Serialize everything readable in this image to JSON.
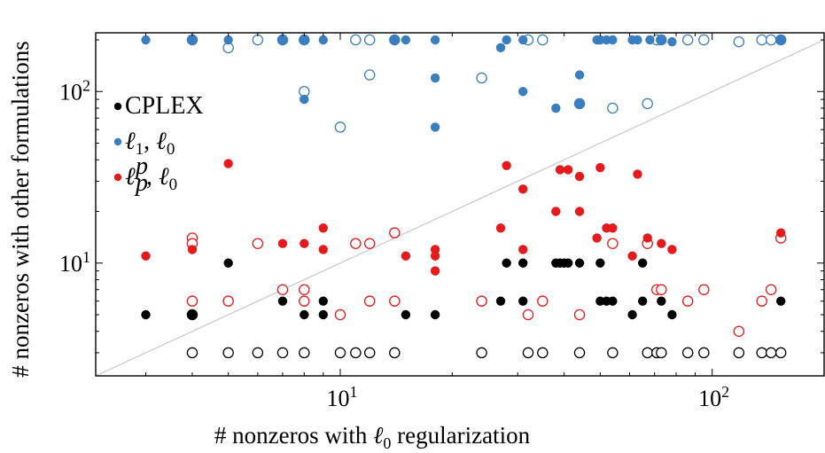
{
  "chart_data": {
    "type": "scatter",
    "title": "",
    "xlabel": "# nonzeros with ℓ0 regularization",
    "ylabel": "# nonzeros with other formulations",
    "xscale": "log",
    "yscale": "log",
    "xlim": [
      2.2,
      200
    ],
    "ylim": [
      2.2,
      220
    ],
    "x_ticks": [
      {
        "value": 10,
        "base": "10",
        "exp": "1"
      },
      {
        "value": 100,
        "base": "10",
        "exp": "2"
      }
    ],
    "y_ticks": [
      {
        "value": 10,
        "base": "10",
        "exp": "1"
      },
      {
        "value": 100,
        "base": "10",
        "exp": "2"
      }
    ],
    "diagonal": true,
    "legend_position": "left",
    "legend": [
      {
        "label": "CPLEX",
        "series": "cplex",
        "color": "#000000"
      },
      {
        "label": "ℓ1, ℓ0",
        "series": "l1",
        "color": "#3a7ebf"
      },
      {
        "label": "ℓpp, ℓ0",
        "series": "lp",
        "color": "#e41a1c"
      }
    ],
    "series": [
      {
        "key": "cplex",
        "color": "#000000",
        "filled": [
          [
            3,
            5
          ],
          [
            4,
            5
          ],
          [
            5,
            10
          ],
          [
            7,
            6
          ],
          [
            8,
            5
          ],
          [
            9,
            5
          ],
          [
            9,
            6
          ],
          [
            15,
            5
          ],
          [
            18,
            5
          ],
          [
            27,
            6
          ],
          [
            28,
            10
          ],
          [
            31,
            6
          ],
          [
            31,
            10
          ],
          [
            38,
            10
          ],
          [
            39,
            10
          ],
          [
            40,
            10
          ],
          [
            41,
            10
          ],
          [
            44,
            10
          ],
          [
            50,
            6
          ],
          [
            50,
            10
          ],
          [
            52,
            6
          ],
          [
            54,
            6
          ],
          [
            61,
            5
          ],
          [
            65,
            6
          ],
          [
            65,
            10
          ],
          [
            73,
            6
          ],
          [
            78,
            5
          ],
          [
            153,
            6
          ]
        ],
        "open": [
          [
            4,
            5
          ],
          [
            4,
            3
          ],
          [
            5,
            3
          ],
          [
            6,
            3
          ],
          [
            7,
            3
          ],
          [
            8,
            3
          ],
          [
            10,
            3
          ],
          [
            11,
            3
          ],
          [
            12,
            3
          ],
          [
            14,
            3
          ],
          [
            24,
            3
          ],
          [
            32,
            3
          ],
          [
            35,
            3
          ],
          [
            44,
            3
          ],
          [
            54,
            3
          ],
          [
            67,
            3
          ],
          [
            71,
            3
          ],
          [
            73,
            3
          ],
          [
            86,
            3
          ],
          [
            95,
            3
          ],
          [
            118,
            3
          ],
          [
            136,
            3
          ],
          [
            144,
            3
          ],
          [
            153,
            3
          ]
        ]
      },
      {
        "key": "l1",
        "color": "#3a7ebf",
        "filled": [
          [
            3,
            200
          ],
          [
            4,
            200
          ],
          [
            5,
            200
          ],
          [
            7,
            200
          ],
          [
            8,
            200
          ],
          [
            8,
            90
          ],
          [
            9,
            200
          ],
          [
            14,
            200
          ],
          [
            15,
            200
          ],
          [
            18,
            200
          ],
          [
            18,
            120
          ],
          [
            18,
            62
          ],
          [
            27,
            180
          ],
          [
            28,
            200
          ],
          [
            31,
            200
          ],
          [
            31,
            100
          ],
          [
            38,
            80
          ],
          [
            44,
            125
          ],
          [
            44,
            85
          ],
          [
            49,
            200
          ],
          [
            50,
            200
          ],
          [
            52,
            200
          ],
          [
            54,
            200
          ],
          [
            61,
            200
          ],
          [
            63,
            200
          ],
          [
            68,
            200
          ],
          [
            73,
            200
          ],
          [
            78,
            195
          ],
          [
            153,
            200
          ]
        ],
        "open": [
          [
            4,
            200
          ],
          [
            5,
            180
          ],
          [
            6,
            200
          ],
          [
            7,
            200
          ],
          [
            8,
            200
          ],
          [
            8,
            100
          ],
          [
            10,
            62
          ],
          [
            11,
            200
          ],
          [
            12,
            200
          ],
          [
            12,
            125
          ],
          [
            14,
            200
          ],
          [
            24,
            120
          ],
          [
            32,
            200
          ],
          [
            35,
            200
          ],
          [
            44,
            85
          ],
          [
            54,
            80
          ],
          [
            67,
            85
          ],
          [
            71,
            200
          ],
          [
            73,
            200
          ],
          [
            86,
            200
          ],
          [
            95,
            200
          ],
          [
            118,
            195
          ],
          [
            136,
            200
          ],
          [
            144,
            200
          ],
          [
            153,
            200
          ]
        ]
      },
      {
        "key": "lp",
        "color": "#e41a1c",
        "filled": [
          [
            3,
            11
          ],
          [
            4,
            12
          ],
          [
            5,
            38
          ],
          [
            7,
            13
          ],
          [
            8,
            13
          ],
          [
            9,
            16
          ],
          [
            9,
            12
          ],
          [
            15,
            11
          ],
          [
            18,
            12
          ],
          [
            18,
            11
          ],
          [
            18,
            9
          ],
          [
            27,
            16
          ],
          [
            28,
            37
          ],
          [
            31,
            27
          ],
          [
            31,
            12
          ],
          [
            38,
            20
          ],
          [
            39,
            35
          ],
          [
            41,
            35
          ],
          [
            44,
            32
          ],
          [
            44,
            20
          ],
          [
            49,
            14
          ],
          [
            50,
            36
          ],
          [
            52,
            16
          ],
          [
            54,
            16
          ],
          [
            61,
            11
          ],
          [
            63,
            33
          ],
          [
            67,
            14
          ],
          [
            73,
            13
          ],
          [
            78,
            12
          ],
          [
            153,
            15
          ]
        ],
        "open": [
          [
            4,
            14
          ],
          [
            4,
            13
          ],
          [
            4,
            6
          ],
          [
            5,
            6
          ],
          [
            6,
            13
          ],
          [
            7,
            7
          ],
          [
            8,
            7
          ],
          [
            8,
            6
          ],
          [
            10,
            5
          ],
          [
            11,
            13
          ],
          [
            12,
            13
          ],
          [
            12,
            6
          ],
          [
            14,
            15
          ],
          [
            14,
            6
          ],
          [
            24,
            6
          ],
          [
            32,
            5
          ],
          [
            35,
            6
          ],
          [
            44,
            5
          ],
          [
            54,
            13
          ],
          [
            67,
            13
          ],
          [
            71,
            7
          ],
          [
            73,
            7
          ],
          [
            86,
            6
          ],
          [
            95,
            7
          ],
          [
            118,
            4
          ],
          [
            136,
            6
          ],
          [
            144,
            7
          ],
          [
            153,
            14
          ]
        ]
      }
    ]
  }
}
